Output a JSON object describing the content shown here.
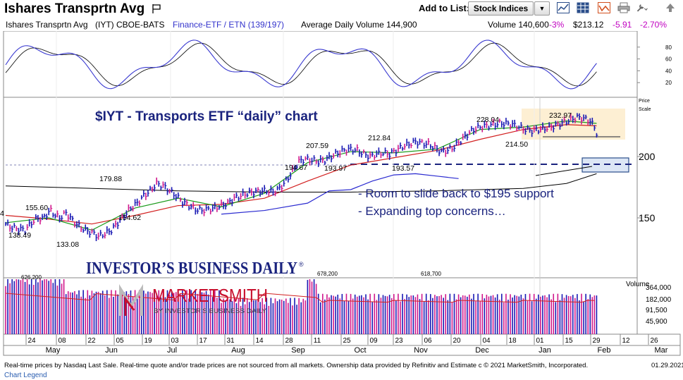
{
  "header": {
    "title": "Ishares Transprtn Avg",
    "add_to_list_label": "Add to List:",
    "list_select_value": "Stock Indices",
    "icons": [
      "flag-icon",
      "dropdown-arrow-icon",
      "line-chart-icon",
      "grid-icon",
      "alert-chart-icon",
      "print-icon",
      "tools-icon",
      "up-arrow-icon"
    ]
  },
  "info_bar": {
    "name": "Ishares Transprtn Avg",
    "symbol": "(IYT) CBOE-BATS",
    "group": "Finance-ETF / ETN (139/197)",
    "avg_volume": "Average Daily Volume 144,900",
    "volume": "Volume 140,600",
    "volume_change": "-3%",
    "price": "$213.12",
    "price_change": "-5.91",
    "pct_change": "-2.70%"
  },
  "annotations": {
    "headline": "$IYT - Transports ETF “daily” chart",
    "note1": "- Room to slide back to $195 support",
    "note2": "- Expanding top concerns…",
    "ibd": "INVESTOR’S BUSINESS DAILY",
    "ibd_mark": "®",
    "marketsmith": "MARKETSMITH",
    "marketsmith_sub": "BY INVESTOR’S BUSINESS DAILY"
  },
  "footer": {
    "disclaimer": "Real-time prices by Nasdaq Last Sale. Real-time quote and/or trade prices are not sourced from all markets. Ownership data provided by Refinitiv and Estimate c   © 2021 MarketSmith, Incorporated.",
    "date": "01.29.2021",
    "legend_link": "Chart Legend"
  },
  "colors": {
    "price_bar": "#1a1ab4",
    "down_bar": "#d0188c",
    "ma_short": "#1a9a1a",
    "ma_long": "#d22020",
    "ma_200": "#000000",
    "rs_line": "#2a2ad0",
    "annotation_blue": "#1a237e",
    "ibd_red": "#c8102e"
  },
  "chart_data": {
    "type": "line",
    "price_axis": {
      "label_price": "Price",
      "label_scale": "Scale",
      "ticks": [
        "200",
        "150"
      ],
      "tick_values": [
        200,
        150
      ]
    },
    "x_ticks": [
      "24",
      "08",
      "22",
      "05",
      "19",
      "03",
      "17",
      "31",
      "14",
      "28",
      "11",
      "25",
      "09",
      "23",
      "06",
      "20",
      "04",
      "18",
      "01",
      "15",
      "29",
      "12",
      "26"
    ],
    "month_labels": [
      "May",
      "Jun",
      "Jul",
      "Aug",
      "Sep",
      "Oct",
      "Nov",
      "Dec",
      "Jan",
      "Feb",
      "Mar"
    ],
    "price_labels": [
      {
        "text": "4",
        "value": "164"
      },
      {
        "text": "155.60",
        "value": 155.6
      },
      {
        "text": "138.49",
        "value": 138.49
      },
      {
        "text": "133.08",
        "value": 133.08
      },
      {
        "text": "179.88",
        "value": 179.88
      },
      {
        "text": "154.62",
        "value": 154.62
      },
      {
        "text": "207.59",
        "value": 207.59
      },
      {
        "text": "194.67",
        "value": 194.67
      },
      {
        "text": "193.97",
        "value": 193.97
      },
      {
        "text": "212.84",
        "value": 212.84
      },
      {
        "text": "193.57",
        "value": 193.57
      },
      {
        "text": "228.04",
        "value": 228.04
      },
      {
        "text": "214.50",
        "value": 214.5
      },
      {
        "text": "232.97",
        "value": 232.97
      }
    ],
    "support_level": 195,
    "oscillator": {
      "ticks": [
        "80",
        "60",
        "40",
        "20"
      ],
      "tick_values": [
        80,
        60,
        40,
        20
      ]
    },
    "volume": {
      "label": "Volume",
      "ticks": [
        "364,000",
        "182,000",
        "91,500",
        "45,900"
      ],
      "peak_labels": [
        "626,200",
        "678,200",
        "618,700"
      ]
    },
    "series": [
      {
        "key": "price",
        "points": [
          [
            0,
            145
          ],
          [
            3,
            142
          ],
          [
            6,
            141
          ],
          [
            9,
            140
          ],
          [
            12,
            146
          ],
          [
            15,
            150
          ],
          [
            17,
            149
          ],
          [
            19,
            153
          ],
          [
            21,
            156
          ],
          [
            23,
            152
          ],
          [
            25,
            150
          ],
          [
            28,
            154
          ],
          [
            31,
            148
          ],
          [
            34,
            143
          ],
          [
            37,
            140
          ],
          [
            40,
            138
          ],
          [
            43,
            135
          ],
          [
            46,
            137
          ],
          [
            49,
            140
          ],
          [
            52,
            146
          ],
          [
            55,
            152
          ],
          [
            58,
            158
          ],
          [
            61,
            162
          ],
          [
            64,
            168
          ],
          [
            67,
            172
          ],
          [
            70,
            178
          ],
          [
            73,
            176
          ],
          [
            76,
            172
          ],
          [
            79,
            168
          ],
          [
            82,
            163
          ],
          [
            85,
            160
          ],
          [
            88,
            157
          ],
          [
            91,
            156
          ],
          [
            94,
            157
          ],
          [
            97,
            158
          ],
          [
            100,
            160
          ],
          [
            103,
            162
          ],
          [
            106,
            166
          ],
          [
            109,
            168
          ],
          [
            112,
            170
          ],
          [
            115,
            171
          ],
          [
            118,
            172
          ],
          [
            121,
            172
          ],
          [
            124,
            171
          ],
          [
            127,
            174
          ],
          [
            130,
            180
          ],
          [
            133,
            188
          ],
          [
            136,
            196
          ],
          [
            139,
            198
          ],
          [
            142,
            197
          ],
          [
            145,
            196
          ],
          [
            148,
            197
          ],
          [
            151,
            200
          ],
          [
            154,
            203
          ],
          [
            157,
            205
          ],
          [
            160,
            206
          ],
          [
            163,
            205
          ],
          [
            166,
            202
          ],
          [
            169,
            200
          ],
          [
            172,
            202
          ],
          [
            175,
            203
          ],
          [
            178,
            202
          ],
          [
            181,
            205
          ],
          [
            184,
            208
          ],
          [
            187,
            210
          ],
          [
            190,
            212
          ],
          [
            193,
            211
          ],
          [
            196,
            210
          ],
          [
            199,
            207
          ],
          [
            202,
            204
          ],
          [
            205,
            205
          ],
          [
            208,
            208
          ],
          [
            211,
            213
          ],
          [
            214,
            218
          ],
          [
            217,
            222
          ],
          [
            220,
            224
          ],
          [
            223,
            225
          ],
          [
            226,
            226
          ],
          [
            229,
            227
          ],
          [
            232,
            227
          ],
          [
            235,
            226
          ],
          [
            238,
            224
          ],
          [
            241,
            222
          ],
          [
            244,
            221
          ],
          [
            247,
            222
          ],
          [
            250,
            223
          ],
          [
            253,
            224
          ],
          [
            256,
            226
          ],
          [
            259,
            228
          ],
          [
            262,
            230
          ],
          [
            265,
            232
          ],
          [
            268,
            231
          ],
          [
            271,
            229
          ],
          [
            273,
            224
          ],
          [
            274,
            219
          ]
        ]
      },
      {
        "key": "ma50",
        "points": [
          [
            0,
            152
          ],
          [
            20,
            149
          ],
          [
            40,
            145
          ],
          [
            60,
            152
          ],
          [
            80,
            160
          ],
          [
            100,
            161
          ],
          [
            120,
            166
          ],
          [
            140,
            180
          ],
          [
            160,
            193
          ],
          [
            180,
            199
          ],
          [
            200,
            205
          ],
          [
            220,
            214
          ],
          [
            240,
            222
          ],
          [
            260,
            226
          ],
          [
            274,
            225
          ]
        ]
      },
      {
        "key": "ma10",
        "points": [
          [
            0,
            146
          ],
          [
            20,
            150
          ],
          [
            40,
            140
          ],
          [
            60,
            158
          ],
          [
            80,
            166
          ],
          [
            100,
            159
          ],
          [
            120,
            170
          ],
          [
            140,
            195
          ],
          [
            160,
            204
          ],
          [
            180,
            203
          ],
          [
            200,
            206
          ],
          [
            220,
            222
          ],
          [
            240,
            224
          ],
          [
            260,
            229
          ],
          [
            274,
            227
          ]
        ]
      },
      {
        "key": "ma200",
        "points": [
          [
            0,
            176
          ],
          [
            40,
            174
          ],
          [
            80,
            172
          ],
          [
            120,
            171
          ],
          [
            160,
            171
          ],
          [
            200,
            172
          ],
          [
            240,
            174
          ],
          [
            260,
            178
          ],
          [
            274,
            186
          ]
        ]
      },
      {
        "key": "rs",
        "points": [
          [
            100,
            143
          ],
          [
            120,
            146
          ],
          [
            140,
            152
          ],
          [
            150,
            162
          ],
          [
            160,
            163
          ],
          [
            170,
            170
          ],
          [
            180,
            175
          ],
          [
            190,
            176
          ],
          [
            200,
            174
          ],
          [
            210,
            172
          ]
        ]
      }
    ]
  }
}
